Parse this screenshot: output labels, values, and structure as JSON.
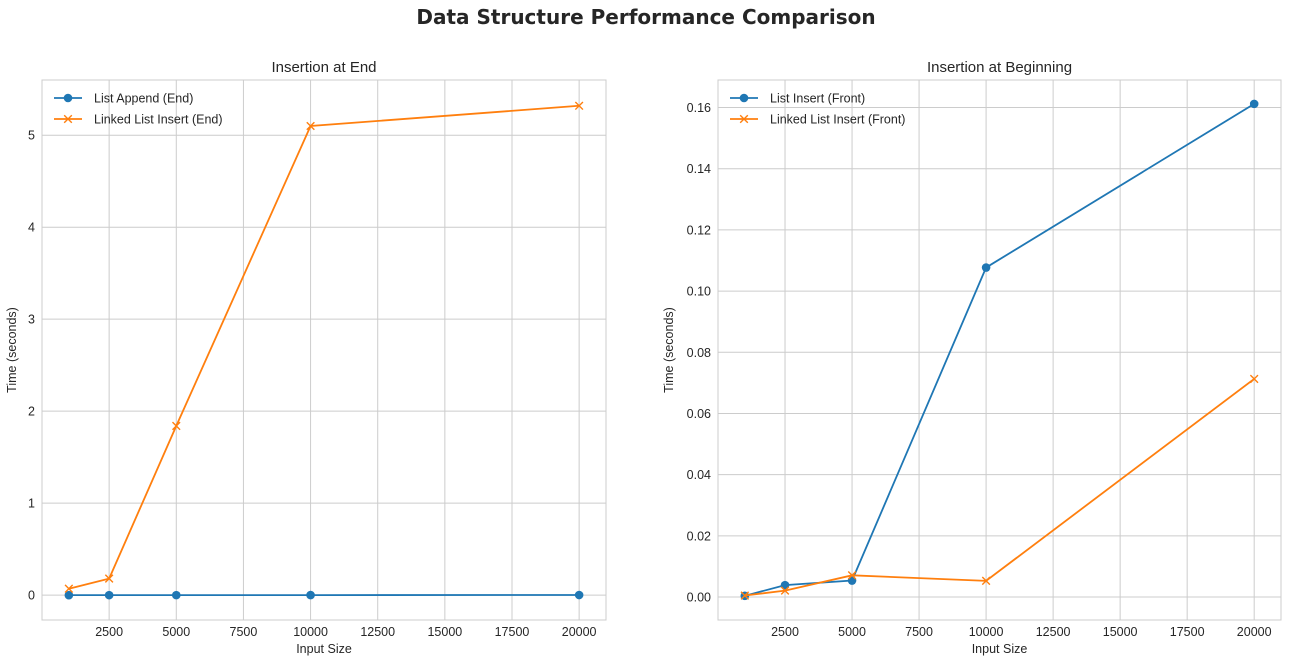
{
  "figure": {
    "title": "Data Structure Performance Comparison"
  },
  "colors": {
    "blue": "#1f77b4",
    "orange": "#ff7f0e",
    "grid": "#cccccc",
    "spine": "#cccccc"
  },
  "chart_data": [
    {
      "type": "line",
      "title": "Insertion at End",
      "xlabel": "Input Size",
      "ylabel": "Time (seconds)",
      "xlim": [
        0,
        21000
      ],
      "ylim": [
        -0.27,
        5.6
      ],
      "xticks": [
        2500,
        5000,
        7500,
        10000,
        12500,
        15000,
        17500,
        20000
      ],
      "yticks": [
        0,
        1,
        2,
        3,
        4,
        5
      ],
      "grid": true,
      "legend": "top-left",
      "x": [
        1000,
        2500,
        5000,
        10000,
        20000
      ],
      "series": [
        {
          "name": "List Append (End)",
          "color": "#1f77b4",
          "marker": "circle",
          "values": [
            0.0001,
            0.0002,
            0.0004,
            0.0008,
            0.0016
          ]
        },
        {
          "name": "Linked List Insert (End)",
          "color": "#ff7f0e",
          "marker": "x",
          "values": [
            0.07,
            0.18,
            1.84,
            5.1,
            5.32
          ]
        }
      ]
    },
    {
      "type": "line",
      "title": "Insertion at Beginning",
      "xlabel": "Input Size",
      "ylabel": "Time (seconds)",
      "xlim": [
        0,
        21000
      ],
      "ylim": [
        -0.0075,
        0.169
      ],
      "xticks": [
        2500,
        5000,
        7500,
        10000,
        12500,
        15000,
        17500,
        20000
      ],
      "yticks": [
        0.0,
        0.02,
        0.04,
        0.06,
        0.08,
        0.1,
        0.12,
        0.14,
        0.16
      ],
      "ytick_labels": [
        "0.00",
        "0.02",
        "0.04",
        "0.06",
        "0.08",
        "0.10",
        "0.12",
        "0.14",
        "0.16"
      ],
      "grid": true,
      "legend": "top-left",
      "x": [
        1000,
        2500,
        5000,
        10000,
        20000
      ],
      "series": [
        {
          "name": "List Insert (Front)",
          "color": "#1f77b4",
          "marker": "circle",
          "values": [
            0.0004,
            0.0039,
            0.0054,
            0.1077,
            0.1612
          ]
        },
        {
          "name": "Linked List Insert (Front)",
          "color": "#ff7f0e",
          "marker": "x",
          "values": [
            0.0005,
            0.0021,
            0.0071,
            0.0053,
            0.0713
          ]
        }
      ]
    }
  ]
}
